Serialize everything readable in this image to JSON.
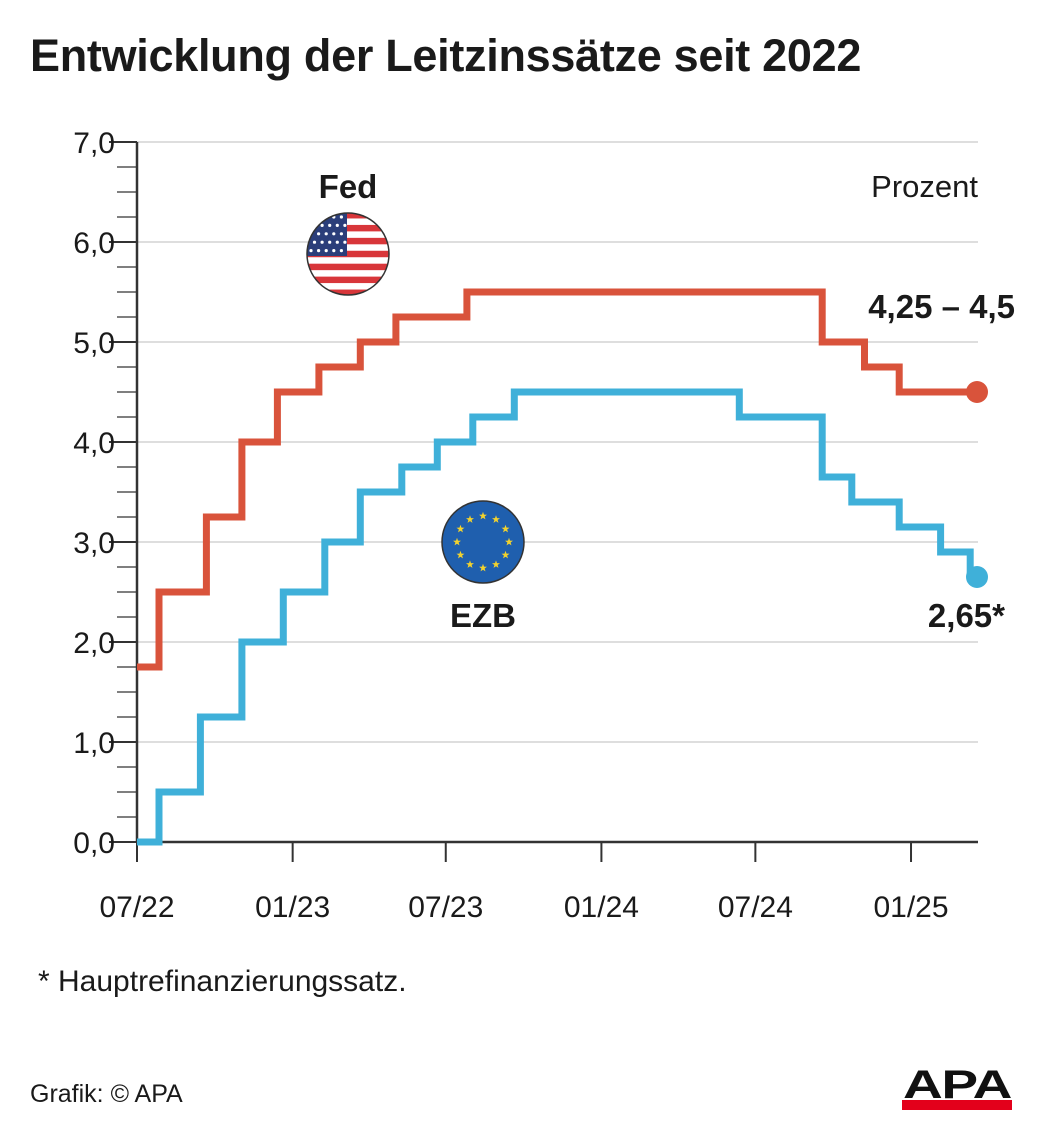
{
  "title": "Entwicklung der Leitzinssätze seit 2022",
  "unit_label": "Prozent",
  "footnote": "* Hauptrefinanzierungssatz.",
  "credit": "Grafik: © APA",
  "logo_text": "APA",
  "colors": {
    "fed": "#d9533b",
    "ezb": "#3fb0d9",
    "grid": "#d3d3d3",
    "axis": "#333333"
  },
  "chart_data": {
    "type": "line",
    "step": true,
    "ylim": [
      0,
      7
    ],
    "yticks": [
      "0,0",
      "1,0",
      "2,0",
      "3,0",
      "4,0",
      "5,0",
      "6,0",
      "7,0"
    ],
    "xlim": [
      "2022-07-01",
      "2025-03-20"
    ],
    "xticks": [
      {
        "date": "2022-07-01",
        "label": "07/22"
      },
      {
        "date": "2023-01-01",
        "label": "01/23"
      },
      {
        "date": "2023-07-01",
        "label": "07/23"
      },
      {
        "date": "2024-01-01",
        "label": "01/24"
      },
      {
        "date": "2024-07-01",
        "label": "07/24"
      },
      {
        "date": "2025-01-01",
        "label": "01/25"
      }
    ],
    "grid": true,
    "series": [
      {
        "name": "Fed",
        "end_label": "4,25 – 4,5",
        "icon": "us-flag-icon",
        "points": [
          [
            "2022-07-01",
            1.75
          ],
          [
            "2022-07-27",
            2.5
          ],
          [
            "2022-09-21",
            3.25
          ],
          [
            "2022-11-02",
            4.0
          ],
          [
            "2022-12-14",
            4.5
          ],
          [
            "2023-02-01",
            4.75
          ],
          [
            "2023-03-22",
            5.0
          ],
          [
            "2023-05-03",
            5.25
          ],
          [
            "2023-07-26",
            5.5
          ],
          [
            "2024-09-18",
            5.0
          ],
          [
            "2024-11-07",
            4.75
          ],
          [
            "2024-12-18",
            4.5
          ],
          [
            "2025-03-20",
            4.5
          ]
        ]
      },
      {
        "name": "EZB",
        "end_label": "2,65*",
        "icon": "eu-flag-icon",
        "points": [
          [
            "2022-07-01",
            0.0
          ],
          [
            "2022-07-27",
            0.5
          ],
          [
            "2022-09-14",
            1.25
          ],
          [
            "2022-11-02",
            2.0
          ],
          [
            "2022-12-21",
            2.5
          ],
          [
            "2023-02-08",
            3.0
          ],
          [
            "2023-03-22",
            3.5
          ],
          [
            "2023-05-10",
            3.75
          ],
          [
            "2023-06-21",
            4.0
          ],
          [
            "2023-08-02",
            4.25
          ],
          [
            "2023-09-20",
            4.5
          ],
          [
            "2024-06-12",
            4.25
          ],
          [
            "2024-09-18",
            3.65
          ],
          [
            "2024-10-23",
            3.4
          ],
          [
            "2024-12-18",
            3.15
          ],
          [
            "2025-02-05",
            2.9
          ],
          [
            "2025-03-12",
            2.65
          ],
          [
            "2025-03-20",
            2.65
          ]
        ]
      }
    ]
  }
}
